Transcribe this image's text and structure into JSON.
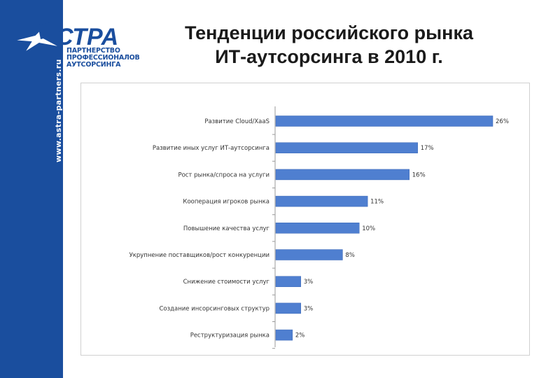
{
  "brand": {
    "url": "www.astra-partners.ru",
    "logo_word": "СТРА",
    "tagline_1": "ПАРТНЕРСТВО",
    "tagline_2": "ПРОФЕССИОНАЛОВ",
    "tagline_3": "АУТСОРСИНГА",
    "color": "#1a4e9e"
  },
  "title_line1": "Тенденции российского рынка",
  "title_line2": "ИТ-аутсорсинга в 2010 г.",
  "chart_data": {
    "type": "bar",
    "orientation": "horizontal",
    "categories": [
      "Развитие Cloud/XaaS",
      "Развитие иных услуг ИТ-аутсорсинга",
      "Рост рынка/спроса на услуги",
      "Кооперация игроков рынка",
      "Повышение качества услуг",
      "Укрупнение поставщиков/рост конкуренции",
      "Снижение стоимости услуг",
      "Создание инсорсинговых структур",
      "Реструктуризация рынка"
    ],
    "values": [
      26,
      17,
      16,
      11,
      10,
      8,
      3,
      3,
      2
    ],
    "data_labels": [
      "26%",
      "17%",
      "16%",
      "11%",
      "10%",
      "8%",
      "3%",
      "3%",
      "2%"
    ],
    "xlim": [
      0,
      26
    ],
    "grid": false,
    "bar_color": "#4f7fd0"
  }
}
